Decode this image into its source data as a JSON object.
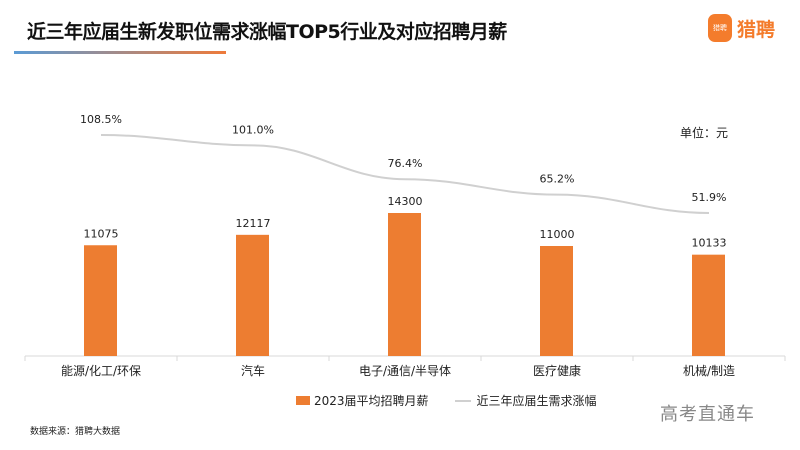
{
  "header": {
    "title": "近三年应届生新发职位需求涨幅TOP5行业及对应招聘月薪",
    "logo_icon_text": "猎聘",
    "logo_text": "猎聘"
  },
  "unit_label": "单位：元",
  "chart_data": {
    "type": "bar+line",
    "categories": [
      "能源/化工/环保",
      "汽车",
      "电子/通信/半导体",
      "医疗健康",
      "机械/制造"
    ],
    "series": [
      {
        "name": "2023届平均招聘月薪",
        "type": "bar",
        "color": "#ed7d31",
        "values": [
          11075,
          12117,
          14300,
          11000,
          10133
        ]
      },
      {
        "name": "近三年应届生需求涨幅",
        "type": "line",
        "color": "#d0d0d0",
        "values": [
          108.5,
          101.0,
          76.4,
          65.2,
          51.9
        ],
        "labels": [
          "108.5%",
          "101.0%",
          "76.4%",
          "65.2%",
          "51.9%"
        ]
      }
    ],
    "legend": "bottom",
    "grid": false
  },
  "footer": {
    "source": "数据来源：猎聘大数据",
    "watermark": "高考直通车"
  }
}
